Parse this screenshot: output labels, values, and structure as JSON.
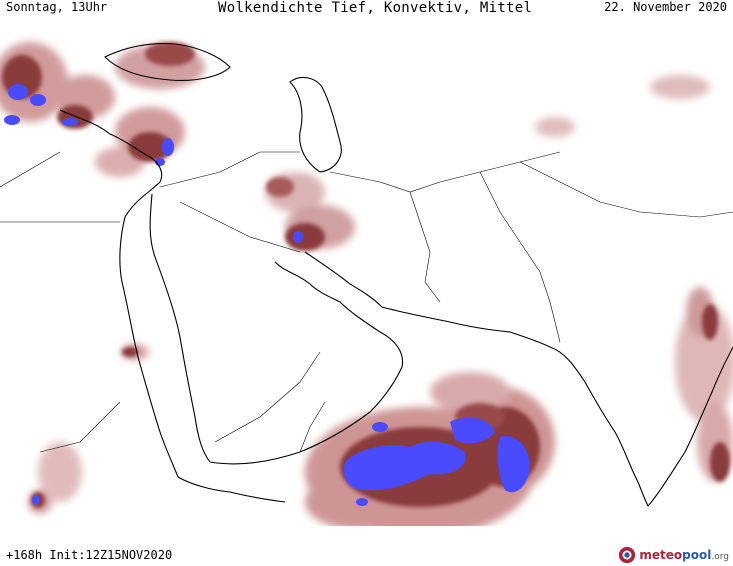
{
  "header": {
    "day_time": "Sonntag, 13Uhr",
    "title": "Wolkendichte  Tief, Konvektiv, Mittel",
    "date": "22. November 2020"
  },
  "footer": {
    "forecast_info": "+168h Init:12Z15NOV2020",
    "logo": {
      "part1": "meteo",
      "part2": "pool",
      "part3": ".org"
    }
  },
  "colors": {
    "cloud_dense": "#4a4aff",
    "cloud_medium": "#8a3b3b",
    "cloud_light": "#d8a8a8",
    "border": "#000000"
  }
}
